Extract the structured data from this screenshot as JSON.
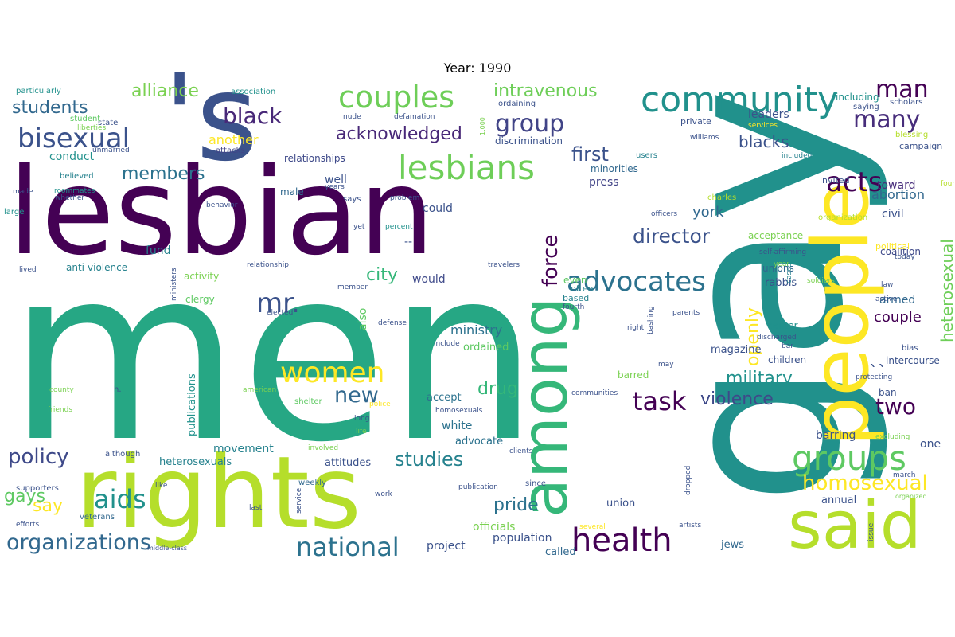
{
  "title": "Year: 1990",
  "palette": "viridis",
  "words": [
    {
      "text": "men",
      "color": "#26a784"
    },
    {
      "text": "gay",
      "color": "#21918c"
    },
    {
      "text": "lesbian",
      "color": "#440154"
    },
    {
      "text": "rights",
      "color": "#b5de2b"
    },
    {
      "text": "people",
      "color": "#fde725"
    },
    {
      "text": "said",
      "color": "#b5de2b"
    },
    {
      "text": "'s",
      "color": "#3b528b"
    },
    {
      "text": "among",
      "color": "#35b779"
    },
    {
      "text": "community",
      "color": "#21918c"
    },
    {
      "text": "lesbians",
      "color": "#6ece58"
    },
    {
      "text": "couples",
      "color": "#6ece58"
    },
    {
      "text": "health",
      "color": "#440154"
    },
    {
      "text": "groups",
      "color": "#5ec962"
    },
    {
      "text": "bisexual",
      "color": "#3b528b"
    },
    {
      "text": "national",
      "color": "#2c728e"
    },
    {
      "text": "organizations",
      "color": "#31688e"
    },
    {
      "text": "advocates",
      "color": "#2c728e"
    },
    {
      "text": "women",
      "color": "#fde725"
    },
    {
      "text": "aids",
      "color": "#21918c"
    },
    {
      "text": "task",
      "color": "#440154"
    },
    {
      "text": "homosexual",
      "color": "#fde725"
    },
    {
      "text": "acknowledged",
      "color": "#482878"
    },
    {
      "text": "black",
      "color": "#482878"
    },
    {
      "text": "group",
      "color": "#414487"
    },
    {
      "text": "many",
      "color": "#472d7b"
    },
    {
      "text": "man",
      "color": "#440154"
    },
    {
      "text": "acts",
      "color": "#440154"
    },
    {
      "text": "two",
      "color": "#440154"
    },
    {
      "text": "force",
      "color": "#440154"
    },
    {
      "text": "director",
      "color": "#3b528b"
    },
    {
      "text": "new",
      "color": "#31688e"
    },
    {
      "text": "policy",
      "color": "#3e4989"
    },
    {
      "text": "studies",
      "color": "#26828e"
    },
    {
      "text": "mr.",
      "color": "#3b528b"
    },
    {
      "text": "students",
      "color": "#31688e"
    },
    {
      "text": "members",
      "color": "#2c728e"
    },
    {
      "text": "alliance",
      "color": "#7ad151"
    },
    {
      "text": "intravenous",
      "color": "#6ece58"
    },
    {
      "text": "first",
      "color": "#3b528b"
    },
    {
      "text": "military",
      "color": "#21918c"
    },
    {
      "text": "violence",
      "color": "#3e4989"
    },
    {
      "text": "openly",
      "color": "#fde725"
    },
    {
      "text": "heterosexual",
      "color": "#6ece58"
    },
    {
      "text": "gays",
      "color": "#5ec962"
    },
    {
      "text": "say",
      "color": "#fde725"
    },
    {
      "text": "pride",
      "color": "#2c728e"
    },
    {
      "text": "city",
      "color": "#35b779"
    },
    {
      "text": "drug",
      "color": "#35b779"
    },
    {
      "text": "blacks",
      "color": "#3b528b"
    },
    {
      "text": "york",
      "color": "#31688e"
    },
    {
      "text": "couple",
      "color": "#440154"
    },
    {
      "text": "ministry",
      "color": "#2c728e"
    },
    {
      "text": "another",
      "color": "#fde725"
    },
    {
      "text": "conduct",
      "color": "#21918c"
    },
    {
      "text": "abortion",
      "color": "#31688e"
    },
    {
      "text": "toward",
      "color": "#472d7b"
    },
    {
      "text": "civil",
      "color": "#3b528b"
    },
    {
      "text": "leaders",
      "color": "#3b528b"
    },
    {
      "text": "well",
      "color": "#3b528b"
    },
    {
      "text": "armed",
      "color": "#31688e"
    },
    {
      "text": "also",
      "color": "#5ec962"
    },
    {
      "text": "would",
      "color": "#3e4989"
    },
    {
      "text": "could",
      "color": "#3b528b"
    },
    {
      "text": "fund",
      "color": "#26828e"
    },
    {
      "text": "press",
      "color": "#414487"
    },
    {
      "text": "movement",
      "color": "#26828e"
    },
    {
      "text": "barring",
      "color": "#3b528b"
    },
    {
      "text": "one",
      "color": "#3b528b"
    },
    {
      "text": "annual",
      "color": "#3b528b"
    },
    {
      "text": "project",
      "color": "#3b528b"
    },
    {
      "text": "population",
      "color": "#3b528b"
    },
    {
      "text": "officials",
      "color": "#7ad151"
    },
    {
      "text": "white",
      "color": "#2c728e"
    },
    {
      "text": "accept",
      "color": "#2c728e"
    },
    {
      "text": "advocate",
      "color": "#2c728e"
    },
    {
      "text": "ordained",
      "color": "#5ec962"
    },
    {
      "text": "publications",
      "color": "#21918c"
    },
    {
      "text": "heterosexuals",
      "color": "#26828e"
    },
    {
      "text": "attitudes",
      "color": "#3b528b"
    },
    {
      "text": "jews",
      "color": "#31688e"
    },
    {
      "text": "union",
      "color": "#3b528b"
    },
    {
      "text": "called",
      "color": "#31688e"
    },
    {
      "text": "magazine",
      "color": "#3b528b"
    },
    {
      "text": "rabbis",
      "color": "#3b528b"
    },
    {
      "text": "coalition",
      "color": "#3e4989"
    },
    {
      "text": "political",
      "color": "#fde725"
    },
    {
      "text": "intercourse",
      "color": "#3b528b"
    },
    {
      "text": "ban",
      "color": "#3b528b"
    },
    {
      "text": "unions",
      "color": "#31688e"
    },
    {
      "text": "activity",
      "color": "#7ad151"
    },
    {
      "text": "clergy",
      "color": "#5ec962"
    },
    {
      "text": "anti-violence",
      "color": "#26828e"
    },
    {
      "text": "male",
      "color": "#31688e"
    },
    {
      "text": "relationships",
      "color": "#3e4989"
    },
    {
      "text": "minorities",
      "color": "#31688e"
    },
    {
      "text": "discrimination",
      "color": "#3b528b"
    },
    {
      "text": "even",
      "color": "#5ec962"
    },
    {
      "text": "often",
      "color": "#26828e"
    },
    {
      "text": "based",
      "color": "#26828e"
    },
    {
      "text": "children",
      "color": "#3b528b"
    },
    {
      "text": "center",
      "color": "#21918c"
    },
    {
      "text": "barred",
      "color": "#7ad151"
    },
    {
      "text": "acceptance",
      "color": "#7ad151"
    },
    {
      "text": "invited",
      "color": "#3b528b"
    },
    {
      "text": "including",
      "color": "#21918c"
    },
    {
      "text": "campaign",
      "color": "#3b528b"
    },
    {
      "text": "private",
      "color": "#3b528b"
    },
    {
      "text": "association",
      "color": "#21918c"
    },
    {
      "text": "particularly",
      "color": "#21918c"
    },
    {
      "text": "believed",
      "color": "#26828e"
    },
    {
      "text": "organization",
      "color": "#b5de2b"
    },
    {
      "text": "supporters",
      "color": "#3b528b"
    },
    {
      "text": "although",
      "color": "#3b528b"
    },
    {
      "text": "veterans",
      "color": "#31688e"
    },
    {
      "text": "shelter",
      "color": "#5ec962"
    },
    {
      "text": "weekly",
      "color": "#31688e"
    },
    {
      "text": "since",
      "color": "#3b528b"
    },
    {
      "text": "ordaining",
      "color": "#3b528b"
    },
    {
      "text": "scholars",
      "color": "#3b528b"
    },
    {
      "text": "saying",
      "color": "#3b528b"
    },
    {
      "text": "blessing",
      "color": "#b5de2b"
    },
    {
      "text": "users",
      "color": "#26828e"
    },
    {
      "text": "williams",
      "color": "#3b528b"
    },
    {
      "text": "included",
      "color": "#26828e"
    },
    {
      "text": "services",
      "color": "#fde725"
    },
    {
      "text": "attacks",
      "color": "#414487"
    },
    {
      "text": "state",
      "color": "#3b528b"
    },
    {
      "text": "student",
      "color": "#5ec962"
    },
    {
      "text": "unmarried",
      "color": "#3b528b"
    },
    {
      "text": "liberties",
      "color": "#7ad151"
    },
    {
      "text": "made",
      "color": "#3b528b"
    },
    {
      "text": "roommates",
      "color": "#21918c"
    },
    {
      "text": "whether",
      "color": "#3b528b"
    },
    {
      "text": "large",
      "color": "#21918c"
    },
    {
      "text": "years",
      "color": "#3b528b"
    },
    {
      "text": "problem",
      "color": "#3b528b"
    },
    {
      "text": "behavior",
      "color": "#3b528b"
    },
    {
      "text": "yet",
      "color": "#3b528b"
    },
    {
      "text": "percent",
      "color": "#21918c"
    },
    {
      "text": "says",
      "color": "#3b528b"
    },
    {
      "text": "charles",
      "color": "#b5de2b"
    },
    {
      "text": "officers",
      "color": "#3b528b"
    },
    {
      "text": "self-affirming",
      "color": "#3b528b"
    },
    {
      "text": "today",
      "color": "#3b528b"
    },
    {
      "text": "lived",
      "color": "#3b528b"
    },
    {
      "text": "relationship",
      "color": "#3b528b"
    },
    {
      "text": "travelers",
      "color": "#3b528b"
    },
    {
      "text": "member",
      "color": "#3b528b"
    },
    {
      "text": "cases",
      "color": "#26828e"
    },
    {
      "text": "soldiers",
      "color": "#7ad151"
    },
    {
      "text": "law",
      "color": "#3b528b"
    },
    {
      "text": "active",
      "color": "#3b528b"
    },
    {
      "text": "elected",
      "color": "#3b528b"
    },
    {
      "text": "ministers",
      "color": "#3b528b"
    },
    {
      "text": "fourth",
      "color": "#3b528b"
    },
    {
      "text": "defense",
      "color": "#3b528b"
    },
    {
      "text": "bashing",
      "color": "#3b528b"
    },
    {
      "text": "right",
      "color": "#3b528b"
    },
    {
      "text": "parents",
      "color": "#3b528b"
    },
    {
      "text": "discharged",
      "color": "#3b528b"
    },
    {
      "text": "bar",
      "color": "#3b528b"
    },
    {
      "text": "bias",
      "color": "#3b528b"
    },
    {
      "text": "include",
      "color": "#3b528b"
    },
    {
      "text": "may",
      "color": "#3b528b"
    },
    {
      "text": "county",
      "color": "#7ad151"
    },
    {
      "text": "h.",
      "color": "#3b528b"
    },
    {
      "text": "american",
      "color": "#7ad151"
    },
    {
      "text": "friends",
      "color": "#7ad151"
    },
    {
      "text": "protecting",
      "color": "#3b528b"
    },
    {
      "text": "communities",
      "color": "#3b528b"
    },
    {
      "text": "homosexuals",
      "color": "#3b528b"
    },
    {
      "text": "police",
      "color": "#fde725"
    },
    {
      "text": "long",
      "color": "#3b528b"
    },
    {
      "text": "life",
      "color": "#7ad151"
    },
    {
      "text": "involved",
      "color": "#7ad151"
    },
    {
      "text": "clients",
      "color": "#3b528b"
    },
    {
      "text": "excluding",
      "color": "#7ad151"
    },
    {
      "text": "like",
      "color": "#3b528b"
    },
    {
      "text": "last",
      "color": "#3b528b"
    },
    {
      "text": "work",
      "color": "#3b528b"
    },
    {
      "text": "publication",
      "color": "#3b528b"
    },
    {
      "text": "march",
      "color": "#3b528b"
    },
    {
      "text": "dropped",
      "color": "#3b528b"
    },
    {
      "text": "organized",
      "color": "#7ad151"
    },
    {
      "text": "issue",
      "color": "#3b528b"
    },
    {
      "text": "efforts",
      "color": "#3b528b"
    },
    {
      "text": "service",
      "color": "#3b528b"
    },
    {
      "text": "several",
      "color": "#fde725"
    },
    {
      "text": "artists",
      "color": "#3b528b"
    },
    {
      "text": "middle-class",
      "color": "#3b528b"
    },
    {
      "text": "nude",
      "color": "#3b528b"
    },
    {
      "text": "defamation",
      "color": "#3b528b"
    },
    {
      "text": "1,000",
      "color": "#7ad151"
    },
    {
      "text": "found",
      "color": "#b5de2b"
    },
    {
      "text": "year",
      "color": "#7ad151"
    },
    {
      "text": "--",
      "color": "#3b528b"
    },
    {
      "text": "``",
      "color": "#3b528b"
    }
  ]
}
